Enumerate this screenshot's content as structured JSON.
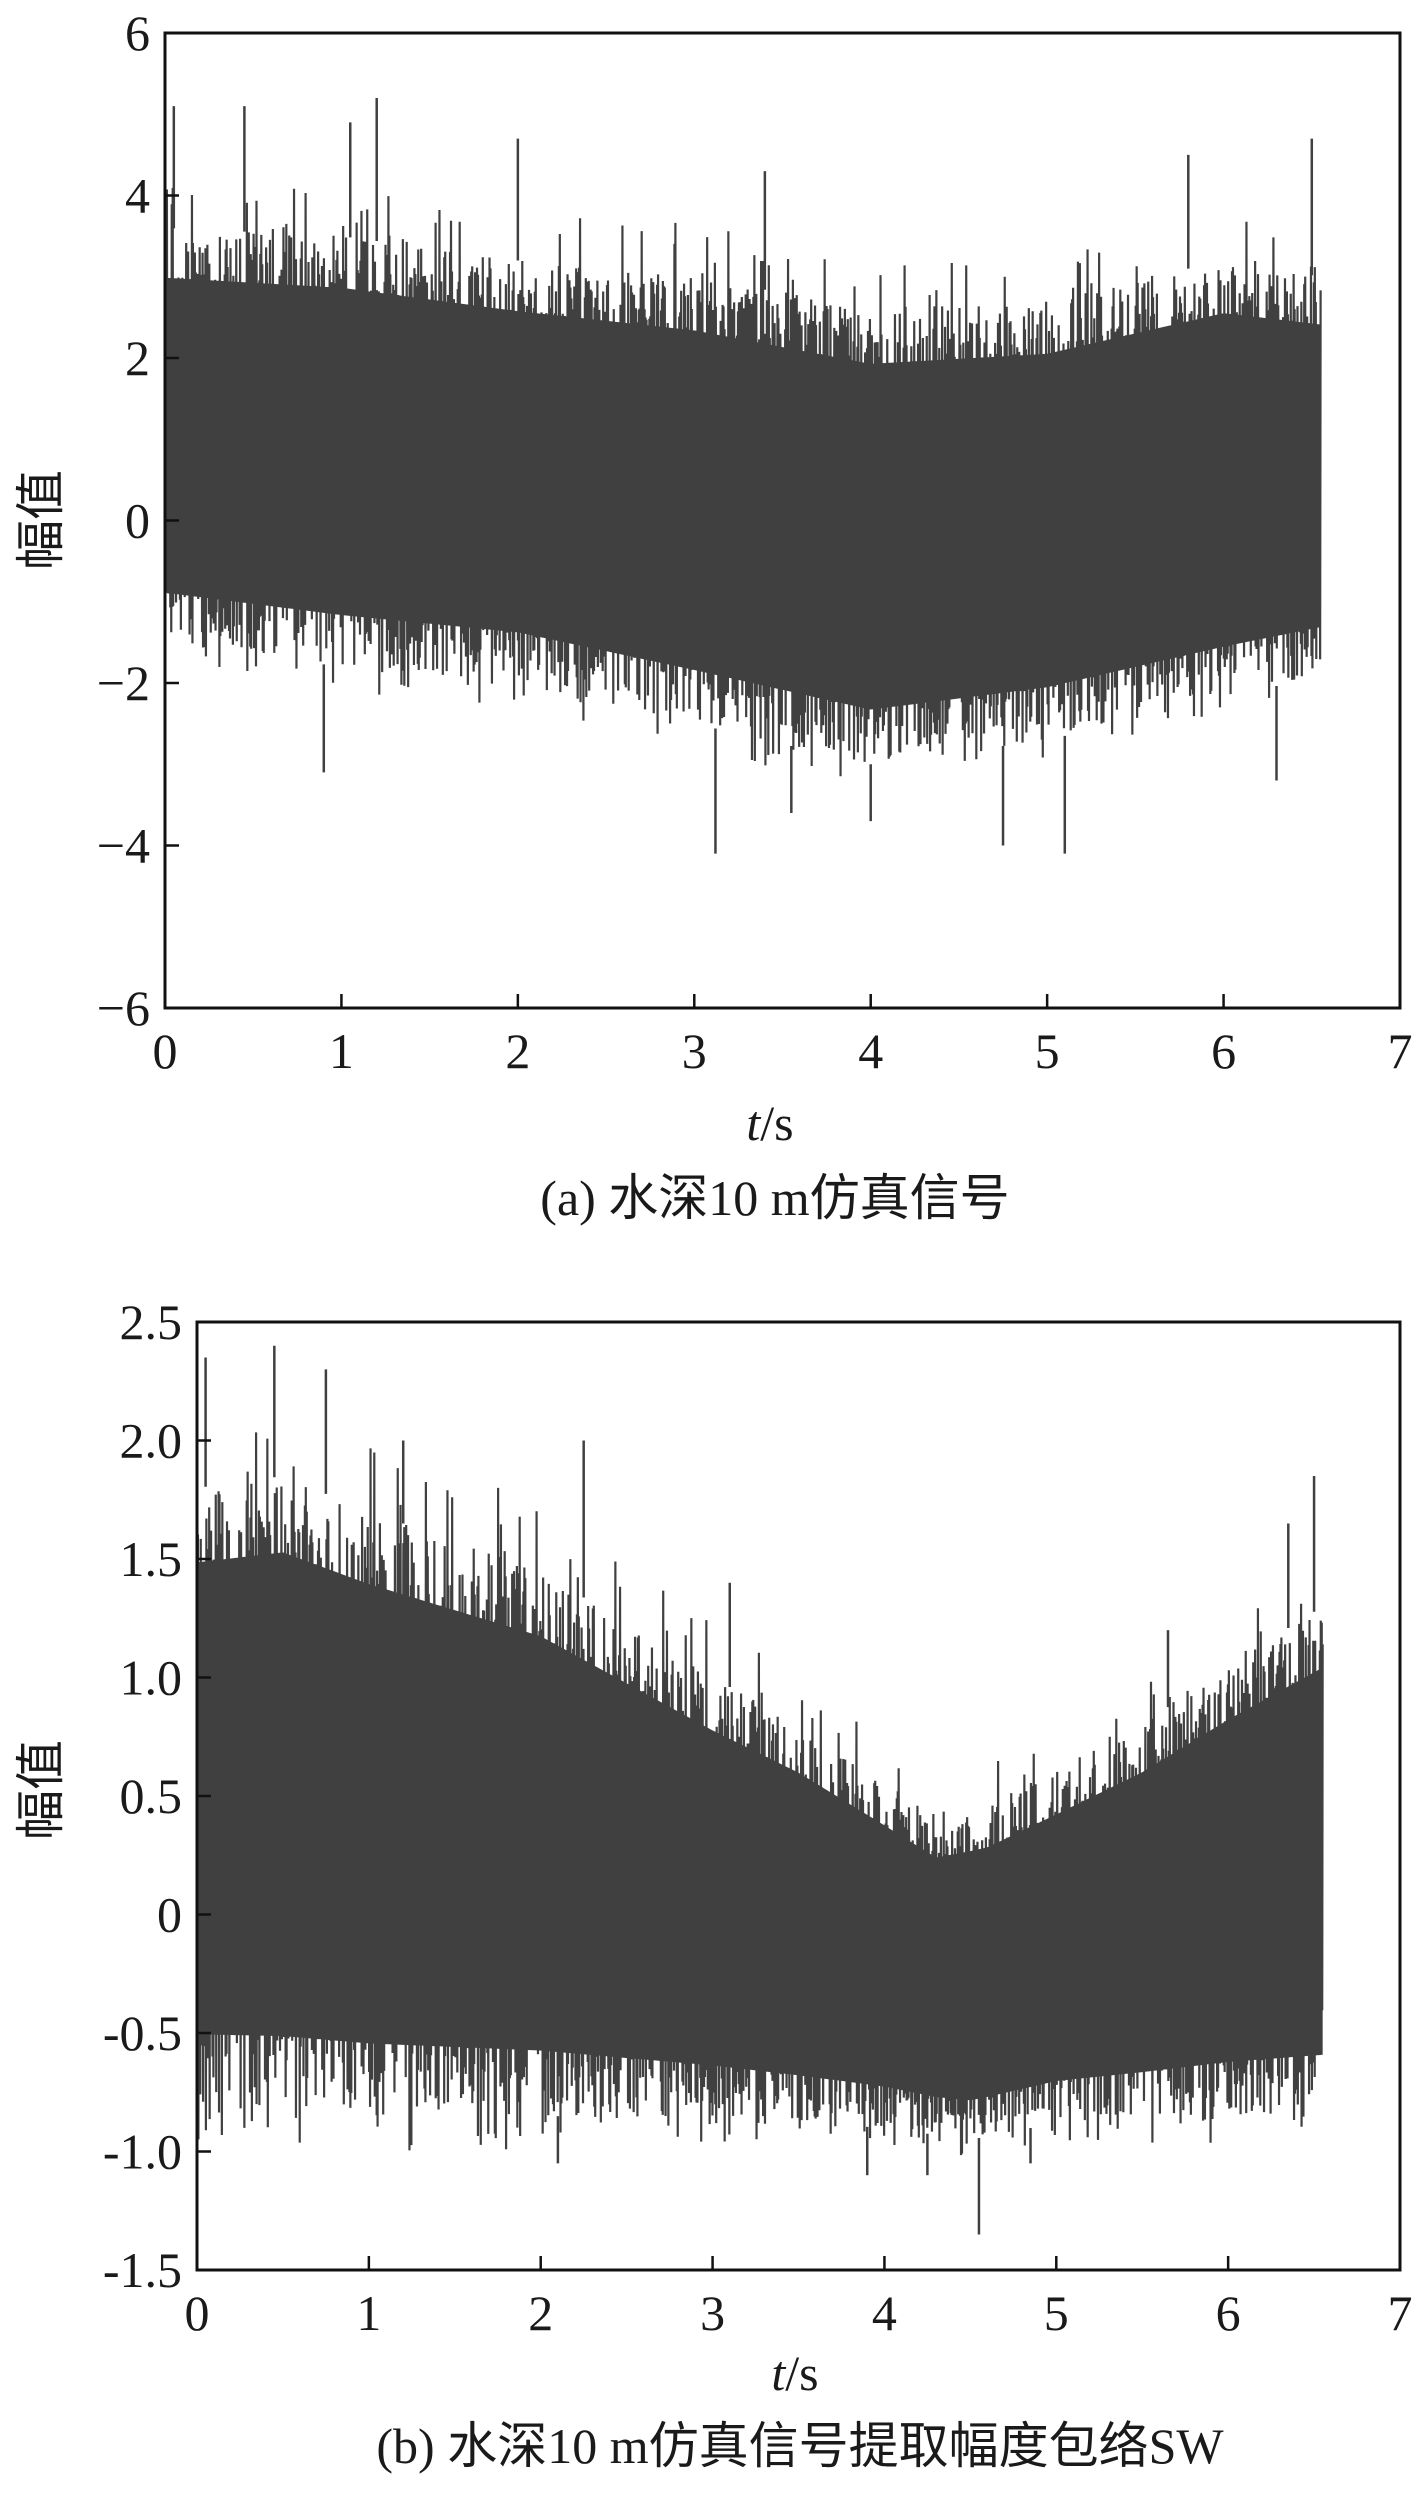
{
  "chart_data": [
    {
      "type": "line",
      "caption": "(a) 水深10  m仿真信号",
      "xlabel_italic": "t",
      "xlabel_rest": "/s",
      "ylabel": "幅值",
      "xlim": [
        0,
        7
      ],
      "ylim": [
        -6,
        6
      ],
      "xticks": [
        0,
        1,
        2,
        3,
        4,
        5,
        6,
        7
      ],
      "yticks": [
        -6,
        -4,
        -2,
        0,
        2,
        4,
        6
      ],
      "xtick_labels": [
        "0",
        "1",
        "2",
        "3",
        "4",
        "5",
        "6",
        "7"
      ],
      "ytick_labels": [
        "−6",
        "−4",
        "−2",
        "0",
        "2",
        "4",
        "6"
      ],
      "grid": false,
      "series_color": "#404040",
      "signal": {
        "x_start": 0,
        "x_end": 6.55,
        "upper_envelope": [
          [
            0,
            3.6
          ],
          [
            1,
            3.5
          ],
          [
            2,
            3.2
          ],
          [
            3,
            3.0
          ],
          [
            4,
            2.6
          ],
          [
            5,
            2.7
          ],
          [
            6,
            3.2
          ],
          [
            6.55,
            3.0
          ]
        ],
        "lower_envelope": [
          [
            0,
            -1.5
          ],
          [
            1,
            -1.8
          ],
          [
            2,
            -2.0
          ],
          [
            3,
            -2.5
          ],
          [
            4,
            -3.0
          ],
          [
            5,
            -2.7
          ],
          [
            6,
            -2.2
          ],
          [
            6.55,
            -1.9
          ]
        ],
        "peaks": [
          [
            0.05,
            5.1
          ],
          [
            0.45,
            5.1
          ],
          [
            1.05,
            4.9
          ],
          [
            1.2,
            5.2
          ],
          [
            2.0,
            4.7
          ],
          [
            3.4,
            4.3
          ],
          [
            5.8,
            4.5
          ],
          [
            6.5,
            4.7
          ]
        ],
        "troughs": [
          [
            0.9,
            -3.1
          ],
          [
            3.12,
            -4.1
          ],
          [
            3.55,
            -3.6
          ],
          [
            4.0,
            -3.7
          ],
          [
            4.75,
            -4.0
          ],
          [
            5.1,
            -4.1
          ],
          [
            6.3,
            -3.2
          ]
        ]
      }
    },
    {
      "type": "line",
      "caption": "(b) 水深10  m仿真信号提取幅度包络SW",
      "xlabel_italic": "t",
      "xlabel_rest": "/s",
      "ylabel": "幅值",
      "xlim": [
        0,
        7
      ],
      "ylim": [
        -1.5,
        2.5
      ],
      "xticks": [
        0,
        1,
        2,
        3,
        4,
        5,
        6,
        7
      ],
      "yticks": [
        -1.5,
        -1.0,
        -0.5,
        0,
        0.5,
        1.0,
        1.5,
        2.0,
        2.5
      ],
      "xtick_labels": [
        "0",
        "1",
        "2",
        "3",
        "4",
        "5",
        "6",
        "7"
      ],
      "ytick_labels": [
        "-1.5",
        "-1.0",
        "-0.5",
        "0",
        "0.5",
        "1.0",
        "1.5",
        "2.0",
        "2.5"
      ],
      "grid": false,
      "series_color": "#404040",
      "signal": {
        "x_start": 0,
        "x_end": 6.55,
        "upper_envelope": [
          [
            0,
            1.8
          ],
          [
            0.5,
            1.85
          ],
          [
            1,
            1.7
          ],
          [
            2,
            1.45
          ],
          [
            3,
            1.0
          ],
          [
            3.5,
            0.8
          ],
          [
            4,
            0.55
          ],
          [
            4.3,
            0.4
          ],
          [
            4.6,
            0.45
          ],
          [
            5,
            0.6
          ],
          [
            5.5,
            0.8
          ],
          [
            6,
            1.05
          ],
          [
            6.55,
            1.3
          ]
        ],
        "lower_envelope": [
          [
            0,
            -0.82
          ],
          [
            1,
            -0.85
          ],
          [
            2,
            -0.85
          ],
          [
            3,
            -0.86
          ],
          [
            4,
            -0.9
          ],
          [
            4.5,
            -0.95
          ],
          [
            5,
            -0.88
          ],
          [
            6,
            -0.85
          ],
          [
            6.55,
            -0.85
          ]
        ],
        "peaks": [
          [
            0.05,
            2.35
          ],
          [
            0.45,
            2.4
          ],
          [
            0.75,
            2.3
          ],
          [
            1.2,
            2.0
          ],
          [
            2.25,
            2.0
          ],
          [
            3.1,
            1.4
          ],
          [
            5.65,
            1.2
          ],
          [
            6.35,
            1.65
          ],
          [
            6.5,
            1.85
          ]
        ],
        "troughs": [
          [
            2.1,
            -1.05
          ],
          [
            3.9,
            -1.1
          ],
          [
            4.25,
            -1.1
          ],
          [
            4.55,
            -1.35
          ],
          [
            4.85,
            -1.05
          ]
        ]
      }
    }
  ]
}
